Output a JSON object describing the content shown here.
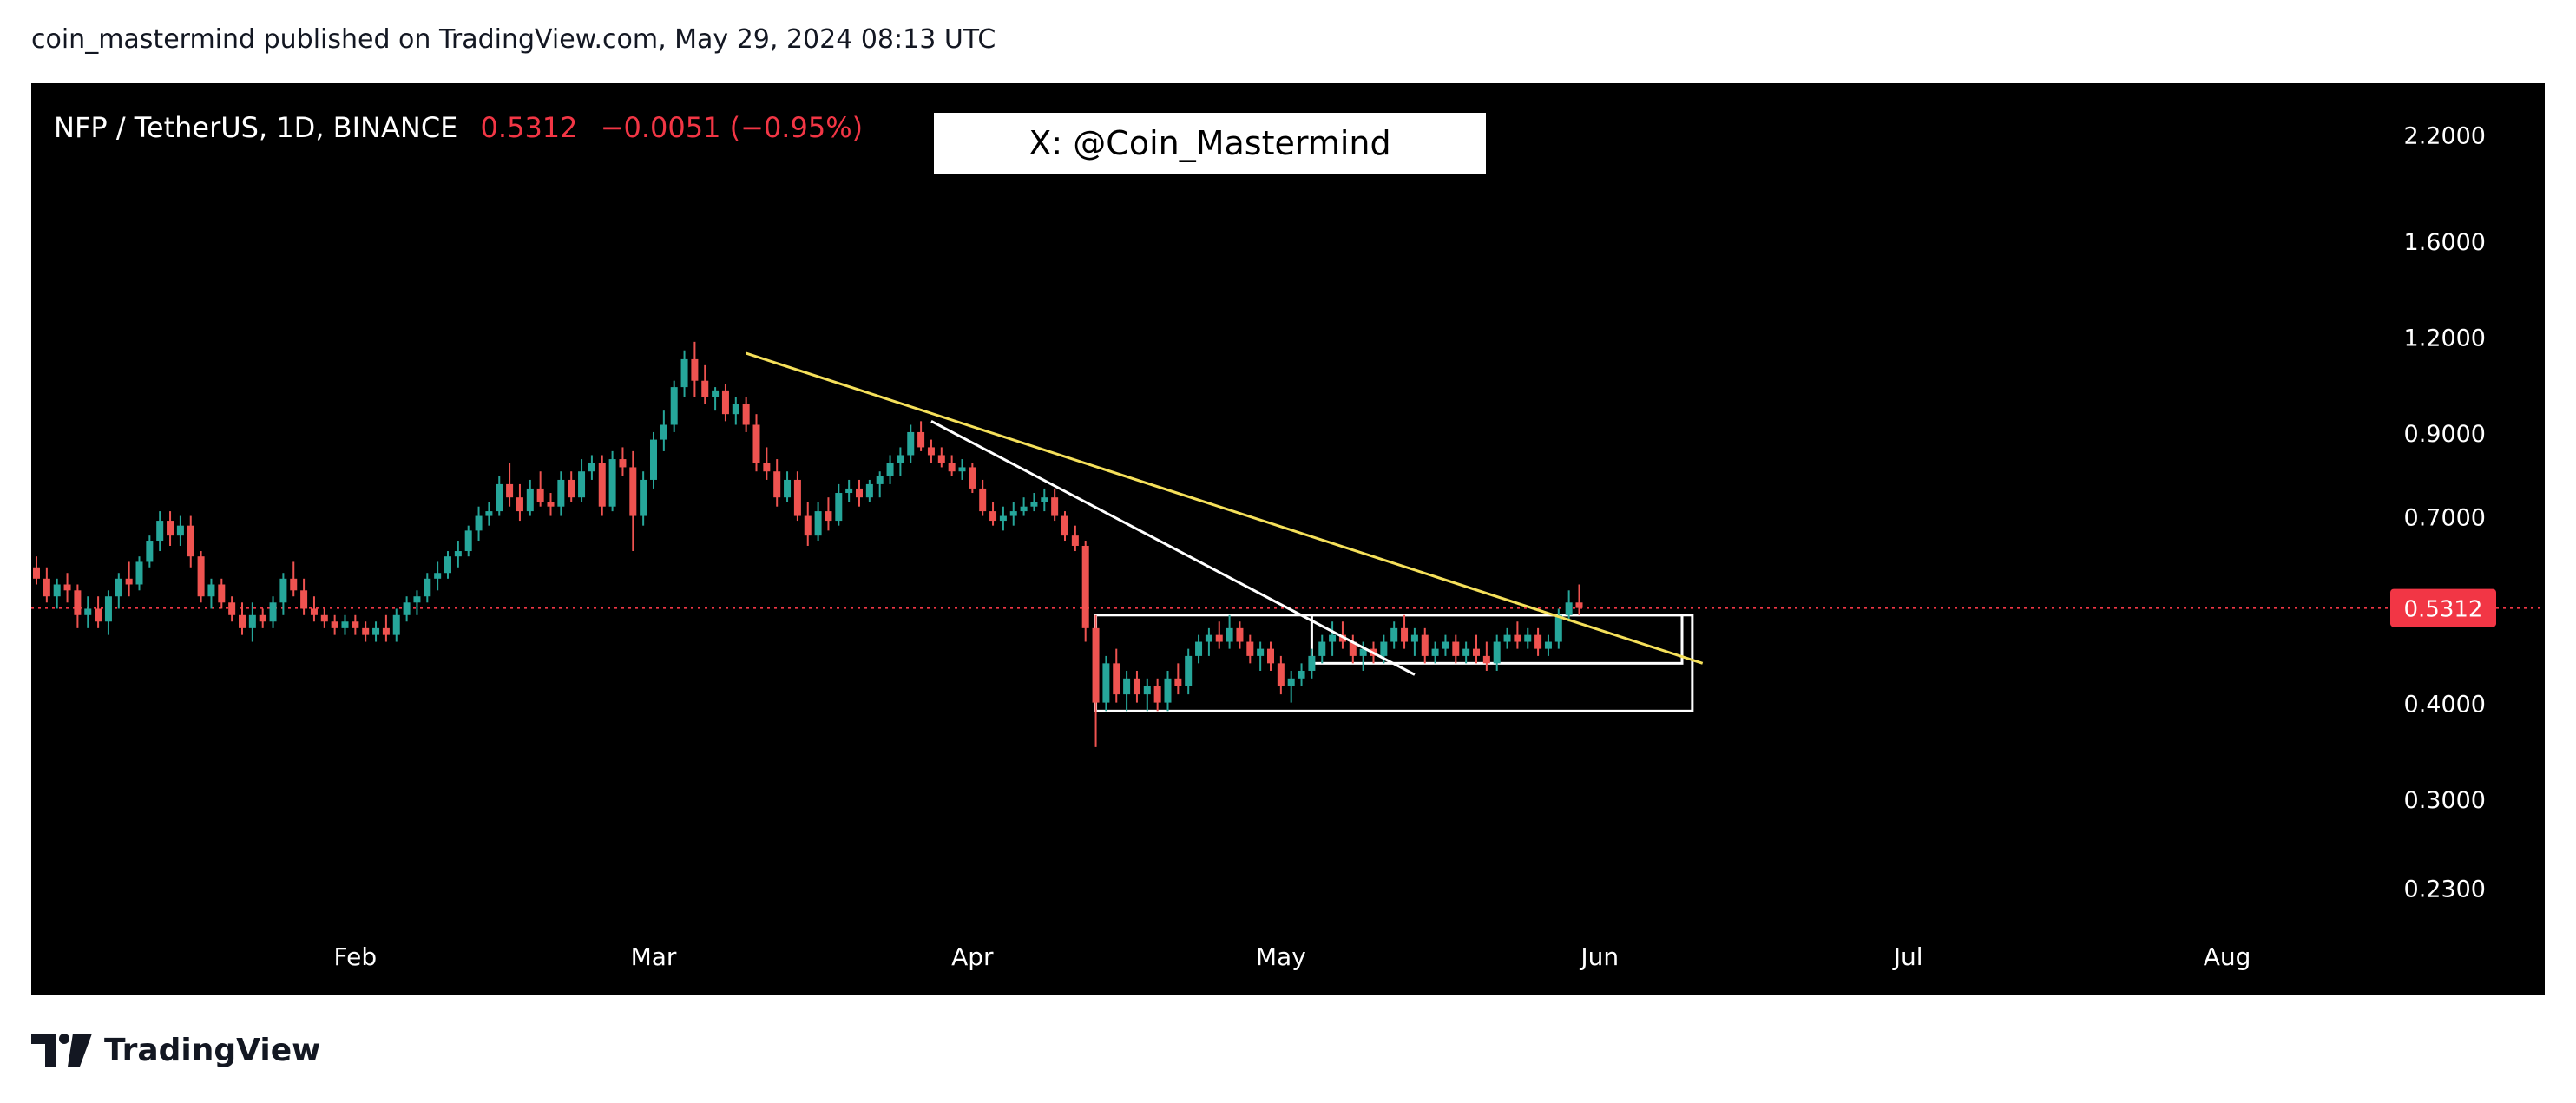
{
  "header": {
    "text": "coin_mastermind published on TradingView.com, May 29, 2024 08:13 UTC"
  },
  "footer": {
    "brand": "TradingView"
  },
  "chart_data": {
    "type": "candlestick",
    "symbol_line": "NFP / TetherUS, 1D, BINANCE",
    "last_price_text": "0.5312",
    "change_text": "−0.0051 (−0.95%)",
    "watermark": "X: @Coin_Mastermind",
    "y_scale": "log",
    "ylim": [
      0.2,
      2.4
    ],
    "y_ticks": [
      "2.2000",
      "1.6000",
      "1.2000",
      "0.9000",
      "0.7000",
      "0.4000",
      "0.3000",
      "0.2300"
    ],
    "x_ticks": [
      "Feb",
      "Mar",
      "Apr",
      "May",
      "Jun",
      "Jul",
      "Aug"
    ],
    "current_price": 0.5312,
    "current_price_label": "0.5312",
    "start_date": "2024-01-01",
    "colors": {
      "up": "#26a69a",
      "down": "#ef5350",
      "price_tag": "#f23645",
      "trend_yellow": "#f5e05a",
      "trend_white": "#ffffff"
    },
    "trendlines": [
      {
        "name": "yellow-downtrend",
        "from": [
          "2024-03-10",
          1.14
        ],
        "to": [
          "2024-06-11",
          0.45
        ]
      },
      {
        "name": "white-downtrend",
        "from": [
          "2024-03-28",
          0.93
        ],
        "to": [
          "2024-05-14",
          0.435
        ]
      }
    ],
    "rectangles": [
      {
        "name": "outer-range-box",
        "from": [
          "2024-04-13",
          0.52
        ],
        "to": [
          "2024-06-10",
          0.39
        ]
      },
      {
        "name": "inner-range-box",
        "from": [
          "2024-05-04",
          0.52
        ],
        "to": [
          "2024-06-09",
          0.45
        ]
      }
    ],
    "candles": [
      [
        "2024-01-01",
        0.6,
        0.62,
        0.57,
        0.58
      ],
      [
        "2024-01-02",
        0.58,
        0.6,
        0.54,
        0.55
      ],
      [
        "2024-01-03",
        0.55,
        0.58,
        0.53,
        0.57
      ],
      [
        "2024-01-04",
        0.57,
        0.59,
        0.54,
        0.56
      ],
      [
        "2024-01-05",
        0.56,
        0.57,
        0.5,
        0.52
      ],
      [
        "2024-01-06",
        0.52,
        0.55,
        0.5,
        0.53
      ],
      [
        "2024-01-07",
        0.53,
        0.55,
        0.5,
        0.51
      ],
      [
        "2024-01-08",
        0.51,
        0.56,
        0.49,
        0.55
      ],
      [
        "2024-01-09",
        0.55,
        0.59,
        0.53,
        0.58
      ],
      [
        "2024-01-10",
        0.58,
        0.61,
        0.55,
        0.57
      ],
      [
        "2024-01-11",
        0.57,
        0.62,
        0.56,
        0.61
      ],
      [
        "2024-01-12",
        0.61,
        0.66,
        0.6,
        0.65
      ],
      [
        "2024-01-13",
        0.65,
        0.71,
        0.63,
        0.69
      ],
      [
        "2024-01-14",
        0.69,
        0.71,
        0.64,
        0.66
      ],
      [
        "2024-01-15",
        0.66,
        0.7,
        0.64,
        0.68
      ],
      [
        "2024-01-16",
        0.68,
        0.7,
        0.6,
        0.62
      ],
      [
        "2024-01-17",
        0.62,
        0.63,
        0.54,
        0.55
      ],
      [
        "2024-01-18",
        0.55,
        0.58,
        0.53,
        0.57
      ],
      [
        "2024-01-19",
        0.57,
        0.58,
        0.53,
        0.54
      ],
      [
        "2024-01-20",
        0.54,
        0.55,
        0.51,
        0.52
      ],
      [
        "2024-01-21",
        0.52,
        0.54,
        0.49,
        0.5
      ],
      [
        "2024-01-22",
        0.5,
        0.54,
        0.48,
        0.52
      ],
      [
        "2024-01-23",
        0.52,
        0.53,
        0.5,
        0.51
      ],
      [
        "2024-01-24",
        0.51,
        0.55,
        0.5,
        0.54
      ],
      [
        "2024-01-25",
        0.54,
        0.59,
        0.52,
        0.58
      ],
      [
        "2024-01-26",
        0.58,
        0.61,
        0.55,
        0.56
      ],
      [
        "2024-01-27",
        0.56,
        0.58,
        0.52,
        0.53
      ],
      [
        "2024-01-28",
        0.53,
        0.55,
        0.51,
        0.52
      ],
      [
        "2024-01-29",
        0.52,
        0.53,
        0.5,
        0.51
      ],
      [
        "2024-01-30",
        0.51,
        0.52,
        0.49,
        0.5
      ],
      [
        "2024-01-31",
        0.5,
        0.52,
        0.49,
        0.51
      ],
      [
        "2024-02-01",
        0.51,
        0.52,
        0.49,
        0.5
      ],
      [
        "2024-02-02",
        0.5,
        0.51,
        0.48,
        0.49
      ],
      [
        "2024-02-03",
        0.49,
        0.51,
        0.48,
        0.5
      ],
      [
        "2024-02-04",
        0.5,
        0.52,
        0.48,
        0.49
      ],
      [
        "2024-02-05",
        0.49,
        0.53,
        0.48,
        0.52
      ],
      [
        "2024-02-06",
        0.52,
        0.55,
        0.51,
        0.54
      ],
      [
        "2024-02-07",
        0.54,
        0.56,
        0.52,
        0.55
      ],
      [
        "2024-02-08",
        0.55,
        0.59,
        0.54,
        0.58
      ],
      [
        "2024-02-09",
        0.58,
        0.61,
        0.56,
        0.59
      ],
      [
        "2024-02-10",
        0.59,
        0.63,
        0.58,
        0.62
      ],
      [
        "2024-02-11",
        0.62,
        0.65,
        0.6,
        0.63
      ],
      [
        "2024-02-12",
        0.63,
        0.68,
        0.62,
        0.67
      ],
      [
        "2024-02-13",
        0.67,
        0.72,
        0.65,
        0.7
      ],
      [
        "2024-02-14",
        0.7,
        0.73,
        0.68,
        0.71
      ],
      [
        "2024-02-15",
        0.71,
        0.79,
        0.7,
        0.77
      ],
      [
        "2024-02-16",
        0.77,
        0.82,
        0.72,
        0.74
      ],
      [
        "2024-02-17",
        0.74,
        0.77,
        0.69,
        0.71
      ],
      [
        "2024-02-18",
        0.71,
        0.78,
        0.7,
        0.76
      ],
      [
        "2024-02-19",
        0.76,
        0.8,
        0.72,
        0.73
      ],
      [
        "2024-02-20",
        0.73,
        0.75,
        0.7,
        0.72
      ],
      [
        "2024-02-21",
        0.72,
        0.8,
        0.7,
        0.78
      ],
      [
        "2024-02-22",
        0.78,
        0.8,
        0.73,
        0.74
      ],
      [
        "2024-02-23",
        0.74,
        0.83,
        0.73,
        0.8
      ],
      [
        "2024-02-24",
        0.8,
        0.84,
        0.78,
        0.82
      ],
      [
        "2024-02-25",
        0.82,
        0.84,
        0.7,
        0.72
      ],
      [
        "2024-02-26",
        0.72,
        0.85,
        0.71,
        0.83
      ],
      [
        "2024-02-27",
        0.83,
        0.86,
        0.79,
        0.81
      ],
      [
        "2024-02-28",
        0.81,
        0.85,
        0.63,
        0.7
      ],
      [
        "2024-02-29",
        0.7,
        0.8,
        0.68,
        0.78
      ],
      [
        "2024-03-01",
        0.78,
        0.9,
        0.76,
        0.88
      ],
      [
        "2024-03-02",
        0.88,
        0.96,
        0.85,
        0.92
      ],
      [
        "2024-03-03",
        0.92,
        1.05,
        0.9,
        1.03
      ],
      [
        "2024-03-04",
        1.03,
        1.15,
        1.0,
        1.12
      ],
      [
        "2024-03-05",
        1.12,
        1.18,
        1.0,
        1.05
      ],
      [
        "2024-03-06",
        1.05,
        1.1,
        0.98,
        1.0
      ],
      [
        "2024-03-07",
        1.0,
        1.03,
        0.96,
        1.02
      ],
      [
        "2024-03-08",
        1.02,
        1.04,
        0.93,
        0.95
      ],
      [
        "2024-03-09",
        0.95,
        1.0,
        0.92,
        0.98
      ],
      [
        "2024-03-10",
        0.98,
        1.0,
        0.9,
        0.92
      ],
      [
        "2024-03-11",
        0.92,
        0.95,
        0.8,
        0.82
      ],
      [
        "2024-03-12",
        0.82,
        0.86,
        0.78,
        0.8
      ],
      [
        "2024-03-13",
        0.8,
        0.83,
        0.72,
        0.74
      ],
      [
        "2024-03-14",
        0.74,
        0.8,
        0.73,
        0.78
      ],
      [
        "2024-03-15",
        0.78,
        0.8,
        0.69,
        0.7
      ],
      [
        "2024-03-16",
        0.7,
        0.73,
        0.64,
        0.66
      ],
      [
        "2024-03-17",
        0.66,
        0.73,
        0.65,
        0.71
      ],
      [
        "2024-03-18",
        0.71,
        0.74,
        0.67,
        0.69
      ],
      [
        "2024-03-19",
        0.69,
        0.77,
        0.68,
        0.75
      ],
      [
        "2024-03-20",
        0.75,
        0.78,
        0.73,
        0.76
      ],
      [
        "2024-03-21",
        0.76,
        0.78,
        0.72,
        0.74
      ],
      [
        "2024-03-22",
        0.74,
        0.78,
        0.73,
        0.77
      ],
      [
        "2024-03-23",
        0.77,
        0.8,
        0.74,
        0.79
      ],
      [
        "2024-03-24",
        0.79,
        0.84,
        0.77,
        0.82
      ],
      [
        "2024-03-25",
        0.82,
        0.86,
        0.79,
        0.84
      ],
      [
        "2024-03-26",
        0.84,
        0.92,
        0.82,
        0.9
      ],
      [
        "2024-03-27",
        0.9,
        0.93,
        0.85,
        0.86
      ],
      [
        "2024-03-28",
        0.86,
        0.88,
        0.82,
        0.84
      ],
      [
        "2024-03-29",
        0.84,
        0.86,
        0.81,
        0.82
      ],
      [
        "2024-03-30",
        0.82,
        0.84,
        0.79,
        0.8
      ],
      [
        "2024-03-31",
        0.8,
        0.83,
        0.78,
        0.81
      ],
      [
        "2024-04-01",
        0.81,
        0.82,
        0.75,
        0.76
      ],
      [
        "2024-04-02",
        0.76,
        0.78,
        0.7,
        0.71
      ],
      [
        "2024-04-03",
        0.71,
        0.73,
        0.68,
        0.69
      ],
      [
        "2024-04-04",
        0.69,
        0.72,
        0.67,
        0.7
      ],
      [
        "2024-04-05",
        0.7,
        0.73,
        0.68,
        0.71
      ],
      [
        "2024-04-06",
        0.71,
        0.74,
        0.7,
        0.72
      ],
      [
        "2024-04-07",
        0.72,
        0.75,
        0.71,
        0.73
      ],
      [
        "2024-04-08",
        0.73,
        0.76,
        0.71,
        0.74
      ],
      [
        "2024-04-09",
        0.74,
        0.76,
        0.69,
        0.7
      ],
      [
        "2024-04-10",
        0.7,
        0.71,
        0.65,
        0.66
      ],
      [
        "2024-04-11",
        0.66,
        0.68,
        0.63,
        0.64
      ],
      [
        "2024-04-12",
        0.64,
        0.65,
        0.48,
        0.5
      ],
      [
        "2024-04-13",
        0.5,
        0.52,
        0.35,
        0.4
      ],
      [
        "2024-04-14",
        0.4,
        0.46,
        0.39,
        0.45
      ],
      [
        "2024-04-15",
        0.45,
        0.47,
        0.4,
        0.41
      ],
      [
        "2024-04-16",
        0.41,
        0.44,
        0.39,
        0.43
      ],
      [
        "2024-04-17",
        0.43,
        0.44,
        0.4,
        0.41
      ],
      [
        "2024-04-18",
        0.41,
        0.43,
        0.39,
        0.42
      ],
      [
        "2024-04-19",
        0.42,
        0.43,
        0.39,
        0.4
      ],
      [
        "2024-04-20",
        0.4,
        0.44,
        0.39,
        0.43
      ],
      [
        "2024-04-21",
        0.43,
        0.45,
        0.41,
        0.42
      ],
      [
        "2024-04-22",
        0.42,
        0.47,
        0.41,
        0.46
      ],
      [
        "2024-04-23",
        0.46,
        0.49,
        0.45,
        0.48
      ],
      [
        "2024-04-24",
        0.48,
        0.5,
        0.46,
        0.49
      ],
      [
        "2024-04-25",
        0.49,
        0.51,
        0.47,
        0.48
      ],
      [
        "2024-04-26",
        0.48,
        0.52,
        0.47,
        0.5
      ],
      [
        "2024-04-27",
        0.5,
        0.51,
        0.47,
        0.48
      ],
      [
        "2024-04-28",
        0.48,
        0.49,
        0.45,
        0.46
      ],
      [
        "2024-04-29",
        0.46,
        0.48,
        0.44,
        0.47
      ],
      [
        "2024-04-30",
        0.47,
        0.48,
        0.44,
        0.45
      ],
      [
        "2024-05-01",
        0.45,
        0.46,
        0.41,
        0.42
      ],
      [
        "2024-05-02",
        0.42,
        0.44,
        0.4,
        0.43
      ],
      [
        "2024-05-03",
        0.43,
        0.45,
        0.42,
        0.44
      ],
      [
        "2024-05-04",
        0.44,
        0.47,
        0.43,
        0.46
      ],
      [
        "2024-05-05",
        0.46,
        0.49,
        0.45,
        0.48
      ],
      [
        "2024-05-06",
        0.48,
        0.51,
        0.46,
        0.49
      ],
      [
        "2024-05-07",
        0.49,
        0.51,
        0.47,
        0.48
      ],
      [
        "2024-05-08",
        0.48,
        0.49,
        0.45,
        0.46
      ],
      [
        "2024-05-09",
        0.46,
        0.48,
        0.44,
        0.47
      ],
      [
        "2024-05-10",
        0.47,
        0.48,
        0.45,
        0.46
      ],
      [
        "2024-05-11",
        0.46,
        0.49,
        0.45,
        0.48
      ],
      [
        "2024-05-12",
        0.48,
        0.51,
        0.47,
        0.5
      ],
      [
        "2024-05-13",
        0.5,
        0.52,
        0.47,
        0.48
      ],
      [
        "2024-05-14",
        0.48,
        0.5,
        0.46,
        0.49
      ],
      [
        "2024-05-15",
        0.49,
        0.5,
        0.45,
        0.46
      ],
      [
        "2024-05-16",
        0.46,
        0.48,
        0.45,
        0.47
      ],
      [
        "2024-05-17",
        0.47,
        0.49,
        0.46,
        0.48
      ],
      [
        "2024-05-18",
        0.48,
        0.49,
        0.45,
        0.46
      ],
      [
        "2024-05-19",
        0.46,
        0.48,
        0.45,
        0.47
      ],
      [
        "2024-05-20",
        0.47,
        0.49,
        0.45,
        0.46
      ],
      [
        "2024-05-21",
        0.46,
        0.48,
        0.44,
        0.45
      ],
      [
        "2024-05-22",
        0.45,
        0.49,
        0.44,
        0.48
      ],
      [
        "2024-05-23",
        0.48,
        0.5,
        0.47,
        0.49
      ],
      [
        "2024-05-24",
        0.49,
        0.51,
        0.47,
        0.48
      ],
      [
        "2024-05-25",
        0.48,
        0.5,
        0.47,
        0.49
      ],
      [
        "2024-05-26",
        0.49,
        0.5,
        0.46,
        0.47
      ],
      [
        "2024-05-27",
        0.47,
        0.49,
        0.46,
        0.48
      ],
      [
        "2024-05-28",
        0.48,
        0.53,
        0.47,
        0.52
      ],
      [
        "2024-05-29",
        0.52,
        0.56,
        0.51,
        0.54
      ],
      [
        "2024-05-30",
        0.54,
        0.57,
        0.52,
        0.5312
      ]
    ]
  }
}
